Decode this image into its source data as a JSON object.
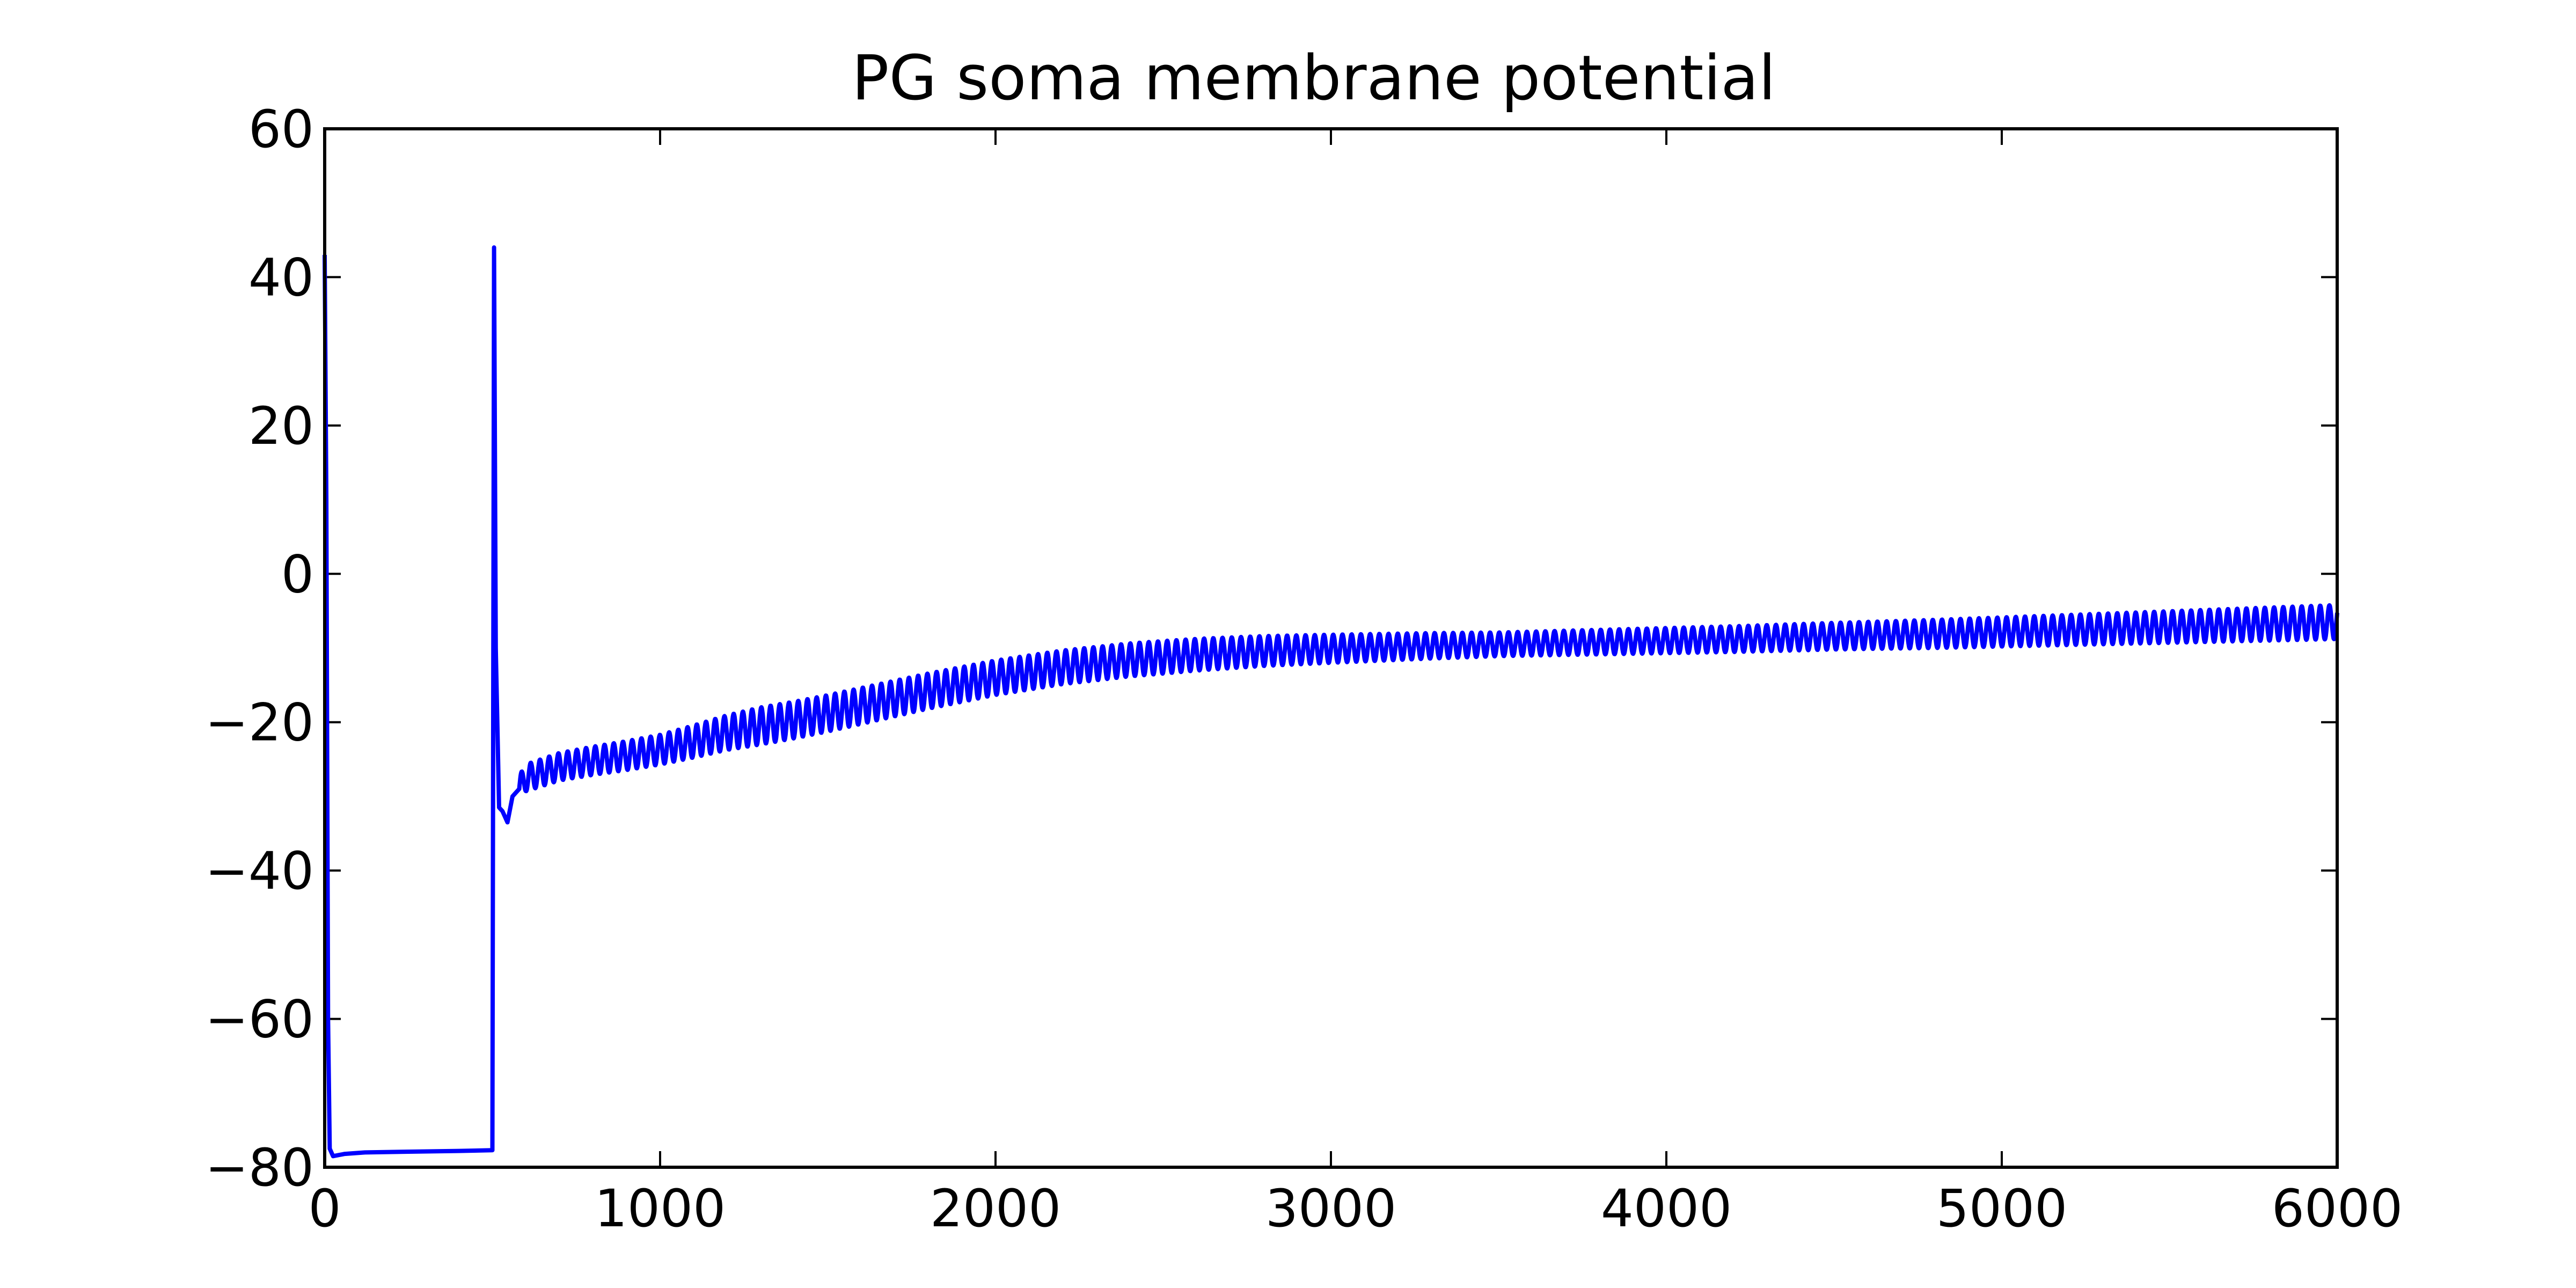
{
  "chart_data": {
    "type": "line",
    "title": "PG soma membrane potential",
    "xlabel": "",
    "ylabel": "",
    "xlim": [
      0,
      6000
    ],
    "ylim": [
      -80,
      60
    ],
    "xticks": [
      0,
      1000,
      2000,
      3000,
      4000,
      5000,
      6000
    ],
    "yticks": [
      -80,
      -60,
      -40,
      -20,
      0,
      20,
      40,
      60
    ],
    "xtick_labels": [
      "0",
      "1000",
      "2000",
      "3000",
      "4000",
      "5000",
      "6000"
    ],
    "ytick_labels": [
      "−80",
      "−60",
      "−40",
      "−20",
      "0",
      "20",
      "40",
      "60"
    ],
    "grid": false,
    "legend": "none",
    "line_color": "#0000ff",
    "series": [
      {
        "x": [
          0,
          5,
          10,
          15,
          25,
          60,
          120,
          250,
          400,
          500,
          505,
          510,
          520,
          530,
          545,
          560,
          580,
          600,
          700,
          800,
          900,
          1000,
          1100,
          1200,
          1300,
          1400,
          1500,
          1600,
          1700,
          1800,
          1900,
          2000,
          2200,
          2400,
          2600,
          2800,
          3000,
          3300,
          3600,
          3900,
          4200,
          4500,
          4800,
          5100,
          5400,
          5700,
          6000
        ],
        "y": [
          43,
          10,
          -60,
          -77.5,
          -78.5,
          -78.2,
          -78,
          -77.9,
          -77.8,
          -77.7,
          44,
          -10,
          -31.5,
          -32,
          -33.5,
          -30,
          -29,
          -27.5,
          -26,
          -25.2,
          -24.5,
          -23.7,
          -22.6,
          -21.4,
          -20.5,
          -19.7,
          -18.8,
          -17.8,
          -16.8,
          -15.8,
          -14.9,
          -14,
          -12.6,
          -11.6,
          -10.9,
          -10.4,
          -10.1,
          -9.7,
          -9.4,
          -9.1,
          -8.8,
          -8.4,
          -8.1,
          -7.7,
          -7.3,
          -6.9,
          -6.5
        ],
        "oscillation": {
          "start": 580,
          "period": 27.5,
          "amplitude": [
            [
              580,
              1.8
            ],
            [
              1000,
              2.0
            ],
            [
              1300,
              2.5
            ],
            [
              2500,
              2.2
            ],
            [
              3500,
              1.6
            ],
            [
              4500,
              1.8
            ],
            [
              6000,
              2.3
            ]
          ]
        }
      }
    ]
  }
}
